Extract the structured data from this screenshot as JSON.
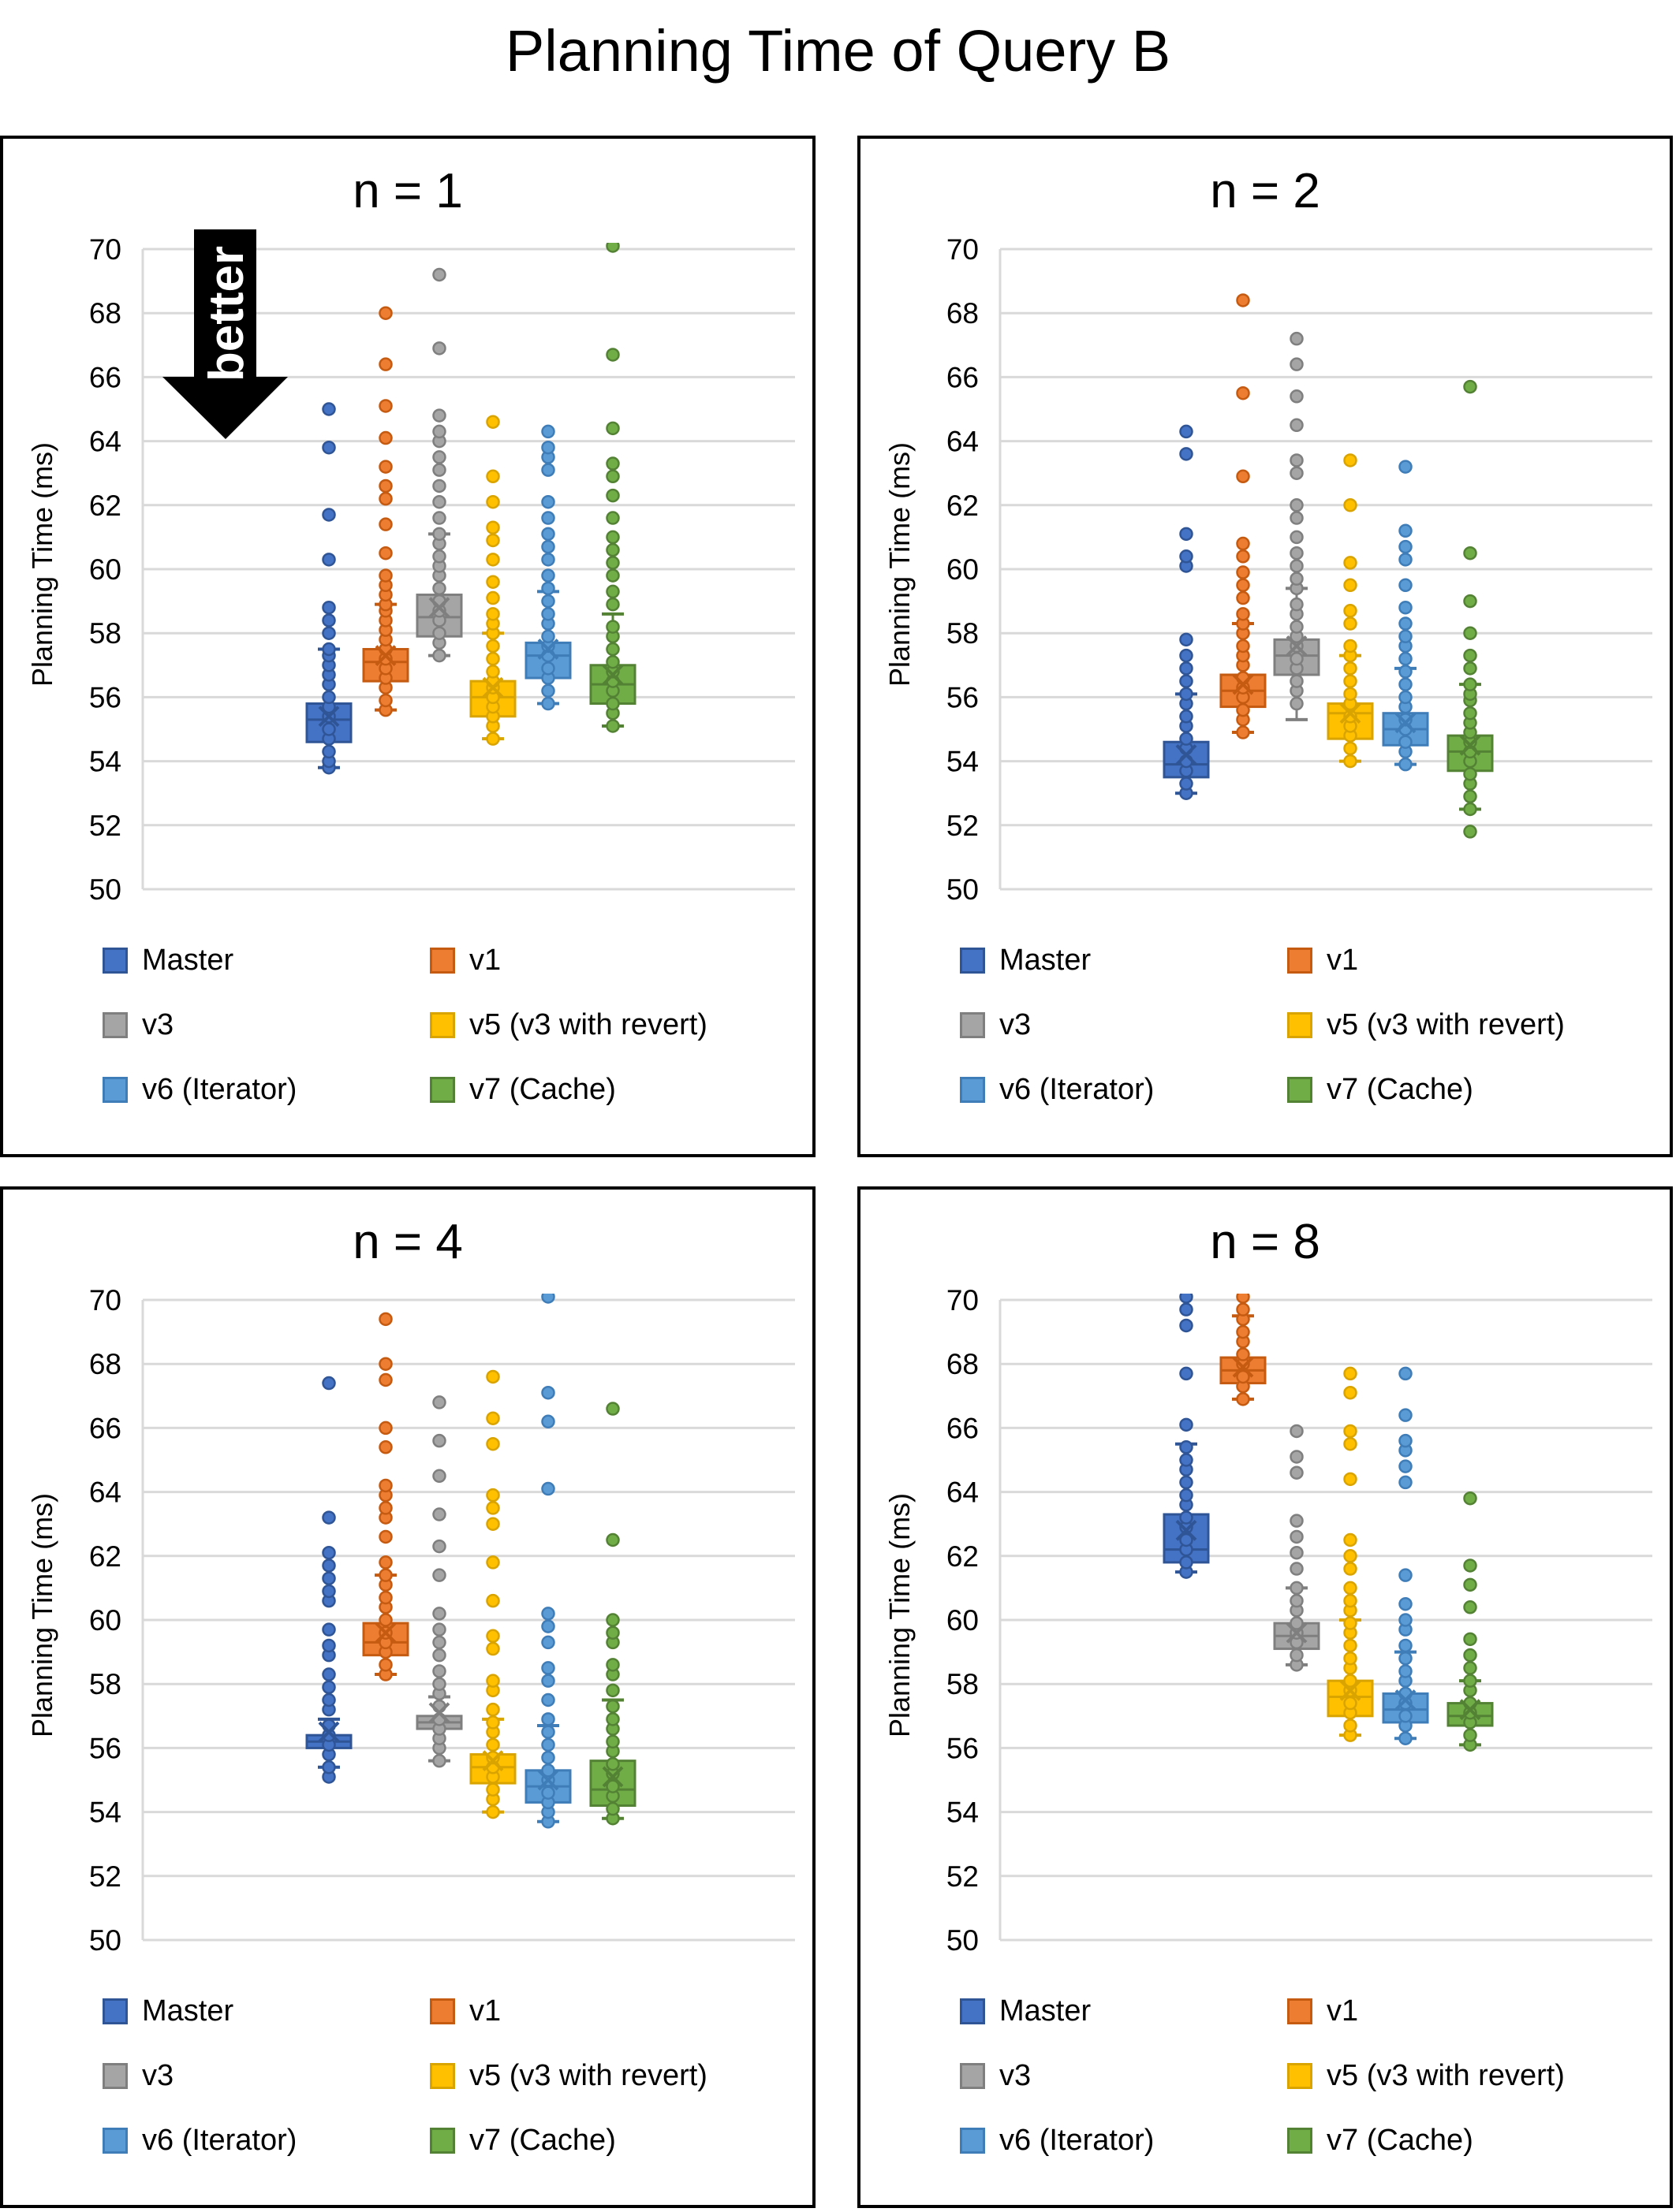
{
  "title": "Planning Time of Query B",
  "legend": [
    {
      "label": "Master",
      "color": "#4472C4",
      "border": "#2F5597"
    },
    {
      "label": "v1",
      "color": "#ED7D31",
      "border": "#C55A11"
    },
    {
      "label": "v3",
      "color": "#A5A5A5",
      "border": "#7F7F7F"
    },
    {
      "label": "v5 (v3 with revert)",
      "color": "#FFC000",
      "border": "#D9A300"
    },
    {
      "label": "v6 (Iterator)",
      "color": "#5B9BD5",
      "border": "#3F7DB8"
    },
    {
      "label": "v7 (Cache)",
      "color": "#70AD47",
      "border": "#548235"
    }
  ],
  "annotation": {
    "text": "better",
    "meaning": "lower is better"
  },
  "chart_data": [
    {
      "type": "box",
      "title": "n = 1",
      "xlabel": "",
      "ylabel": "Planning Time (ms)",
      "ylim": [
        50,
        70
      ],
      "yticks": [
        50,
        52,
        54,
        56,
        58,
        60,
        62,
        64,
        66,
        68,
        70
      ],
      "grid": true,
      "legend_position": "bottom",
      "series": [
        {
          "name": "Master",
          "q1": 54.6,
          "median": 55.3,
          "q3": 55.8,
          "mean": 55.4,
          "whisker_low": 53.8,
          "whisker_high": 57.5,
          "points": [
            53.8,
            54.0,
            54.3,
            54.7,
            55.0,
            55.4,
            55.7,
            56.0,
            56.4,
            56.7,
            57.0,
            57.3,
            57.5,
            58.0,
            58.4,
            58.8,
            60.3,
            61.7,
            63.8,
            65.0
          ]
        },
        {
          "name": "v1",
          "q1": 56.5,
          "median": 57.1,
          "q3": 57.5,
          "mean": 57.3,
          "whisker_low": 55.6,
          "whisker_high": 58.9,
          "points": [
            55.6,
            55.9,
            56.3,
            56.6,
            56.9,
            57.2,
            57.5,
            57.8,
            58.1,
            58.4,
            58.7,
            58.9,
            59.2,
            59.5,
            59.8,
            60.5,
            61.4,
            62.2,
            62.6,
            63.2,
            64.1,
            65.1,
            66.4,
            68.0
          ]
        },
        {
          "name": "v3",
          "q1": 57.9,
          "median": 58.5,
          "q3": 59.2,
          "mean": 58.8,
          "whisker_low": 57.3,
          "whisker_high": 61.1,
          "points": [
            57.3,
            57.7,
            58.0,
            58.4,
            58.7,
            59.0,
            59.4,
            59.8,
            60.1,
            60.4,
            60.8,
            61.1,
            61.6,
            62.1,
            62.6,
            63.1,
            63.5,
            64.0,
            64.3,
            64.8,
            66.9,
            69.2
          ]
        },
        {
          "name": "v5 (v3 with revert)",
          "q1": 55.4,
          "median": 56.0,
          "q3": 56.5,
          "mean": 56.3,
          "whisker_low": 54.7,
          "whisker_high": 58.0,
          "points": [
            54.7,
            55.1,
            55.4,
            55.7,
            56.0,
            56.3,
            56.5,
            56.8,
            57.2,
            57.6,
            58.0,
            58.3,
            58.6,
            59.1,
            59.6,
            60.3,
            60.9,
            61.3,
            62.1,
            62.9,
            64.6
          ]
        },
        {
          "name": "v6 (Iterator)",
          "q1": 56.6,
          "median": 57.3,
          "q3": 57.7,
          "mean": 57.5,
          "whisker_low": 55.8,
          "whisker_high": 59.3,
          "points": [
            55.8,
            56.2,
            56.6,
            56.9,
            57.3,
            57.6,
            57.9,
            58.3,
            58.6,
            59.0,
            59.4,
            59.8,
            60.3,
            60.7,
            61.1,
            61.6,
            62.1,
            63.1,
            63.5,
            63.8,
            64.3
          ]
        },
        {
          "name": "v7 (Cache)",
          "q1": 55.8,
          "median": 56.4,
          "q3": 57.0,
          "mean": 56.7,
          "whisker_low": 55.1,
          "whisker_high": 58.6,
          "points": [
            55.1,
            55.5,
            55.8,
            56.2,
            56.5,
            56.8,
            57.1,
            57.5,
            57.9,
            58.2,
            58.9,
            59.3,
            59.8,
            60.2,
            60.6,
            61.0,
            61.6,
            62.3,
            62.9,
            63.3,
            64.4,
            66.7,
            70.1
          ]
        }
      ]
    },
    {
      "type": "box",
      "title": "n = 2",
      "xlabel": "",
      "ylabel": "Planning Time (ms)",
      "ylim": [
        50,
        70
      ],
      "yticks": [
        50,
        52,
        54,
        56,
        58,
        60,
        62,
        64,
        66,
        68,
        70
      ],
      "grid": true,
      "legend_position": "bottom",
      "series": [
        {
          "name": "Master",
          "q1": 53.5,
          "median": 53.9,
          "q3": 54.6,
          "mean": 54.2,
          "whisker_low": 53.0,
          "whisker_high": 56.1,
          "points": [
            53.0,
            53.3,
            53.7,
            54.0,
            54.4,
            54.7,
            55.1,
            55.4,
            55.8,
            56.1,
            56.5,
            56.9,
            57.3,
            57.8,
            60.1,
            60.4,
            61.1,
            63.6,
            64.3
          ]
        },
        {
          "name": "v1",
          "q1": 55.7,
          "median": 56.2,
          "q3": 56.7,
          "mean": 56.4,
          "whisker_low": 54.9,
          "whisker_high": 58.3,
          "points": [
            54.9,
            55.3,
            55.6,
            56.0,
            56.3,
            56.6,
            57.0,
            57.3,
            57.6,
            58.0,
            58.3,
            58.6,
            59.1,
            59.5,
            59.9,
            60.4,
            60.8,
            62.9,
            65.5,
            68.4
          ]
        },
        {
          "name": "v3",
          "q1": 56.7,
          "median": 57.3,
          "q3": 57.8,
          "mean": 57.6,
          "whisker_low": 55.3,
          "whisker_high": 59.4,
          "points": [
            55.8,
            56.2,
            56.5,
            56.9,
            57.2,
            57.6,
            57.9,
            58.2,
            58.6,
            58.9,
            59.4,
            59.7,
            60.1,
            60.5,
            61.0,
            61.6,
            62.0,
            63.0,
            63.4,
            64.5,
            65.4,
            66.4,
            67.2
          ]
        },
        {
          "name": "v5 (v3 with revert)",
          "q1": 54.7,
          "median": 55.5,
          "q3": 55.8,
          "mean": 55.5,
          "whisker_low": 54.0,
          "whisker_high": 57.3,
          "points": [
            54.0,
            54.4,
            54.8,
            55.1,
            55.4,
            55.8,
            56.1,
            56.5,
            56.9,
            57.3,
            57.6,
            58.3,
            58.7,
            59.5,
            60.2,
            62.0,
            63.4
          ]
        },
        {
          "name": "v6 (Iterator)",
          "q1": 54.5,
          "median": 55.0,
          "q3": 55.5,
          "mean": 55.2,
          "whisker_low": 53.9,
          "whisker_high": 56.9,
          "points": [
            53.9,
            54.3,
            54.6,
            55.0,
            55.3,
            55.7,
            56.0,
            56.4,
            56.8,
            57.2,
            57.6,
            57.9,
            58.3,
            58.8,
            59.5,
            60.3,
            60.7,
            61.2,
            63.2
          ]
        },
        {
          "name": "v7 (Cache)",
          "q1": 53.7,
          "median": 54.3,
          "q3": 54.8,
          "mean": 54.5,
          "whisker_low": 52.5,
          "whisker_high": 56.4,
          "points": [
            51.8,
            52.5,
            52.9,
            53.3,
            53.6,
            54.0,
            54.3,
            54.6,
            54.9,
            55.2,
            55.5,
            55.9,
            56.1,
            56.4,
            56.9,
            57.3,
            58.0,
            59.0,
            60.5,
            65.7
          ]
        }
      ]
    },
    {
      "type": "box",
      "title": "n = 4",
      "xlabel": "",
      "ylabel": "Planning Time (ms)",
      "ylim": [
        50,
        70
      ],
      "yticks": [
        50,
        52,
        54,
        56,
        58,
        60,
        62,
        64,
        66,
        68,
        70
      ],
      "grid": true,
      "legend_position": "bottom",
      "series": [
        {
          "name": "Master",
          "q1": 56.0,
          "median": 56.2,
          "q3": 56.4,
          "mean": 56.5,
          "whisker_low": 55.4,
          "whisker_high": 56.9,
          "points": [
            55.1,
            55.4,
            55.8,
            56.1,
            56.4,
            56.7,
            57.2,
            57.5,
            57.9,
            58.3,
            58.9,
            59.2,
            59.7,
            60.6,
            60.9,
            61.3,
            61.7,
            62.1,
            63.2,
            67.4
          ]
        },
        {
          "name": "v1",
          "q1": 58.9,
          "median": 59.3,
          "q3": 59.9,
          "mean": 59.6,
          "whisker_low": 58.3,
          "whisker_high": 61.4,
          "points": [
            58.3,
            58.6,
            59.0,
            59.3,
            59.6,
            60.0,
            60.4,
            60.7,
            61.1,
            61.4,
            61.8,
            62.6,
            63.2,
            63.5,
            63.9,
            64.2,
            65.4,
            66.0,
            67.5,
            68.0,
            69.4
          ]
        },
        {
          "name": "v3",
          "q1": 56.6,
          "median": 56.8,
          "q3": 57.0,
          "mean": 57.1,
          "whisker_low": 55.6,
          "whisker_high": 57.6,
          "points": [
            55.6,
            56.0,
            56.3,
            56.6,
            56.9,
            57.3,
            57.7,
            58.0,
            58.4,
            58.9,
            59.3,
            59.7,
            60.2,
            61.4,
            62.3,
            63.3,
            64.5,
            65.6,
            66.8
          ]
        },
        {
          "name": "v5 (v3 with revert)",
          "q1": 54.9,
          "median": 55.4,
          "q3": 55.8,
          "mean": 55.6,
          "whisker_low": 54.0,
          "whisker_high": 56.9,
          "points": [
            54.0,
            54.4,
            54.7,
            55.1,
            55.4,
            55.7,
            56.1,
            56.5,
            56.8,
            57.2,
            57.8,
            58.1,
            59.1,
            59.5,
            60.6,
            61.8,
            63.0,
            63.5,
            63.9,
            65.5,
            66.3,
            67.6
          ]
        },
        {
          "name": "v6 (Iterator)",
          "q1": 54.3,
          "median": 54.8,
          "q3": 55.3,
          "mean": 55.0,
          "whisker_low": 53.7,
          "whisker_high": 56.7,
          "points": [
            53.7,
            54.0,
            54.3,
            54.6,
            55.0,
            55.3,
            55.7,
            56.1,
            56.5,
            56.9,
            57.5,
            58.1,
            58.5,
            59.3,
            59.8,
            60.2,
            64.1,
            66.2,
            67.1,
            70.1
          ]
        },
        {
          "name": "v7 (Cache)",
          "q1": 54.2,
          "median": 54.7,
          "q3": 55.6,
          "mean": 55.1,
          "whisker_low": 53.8,
          "whisker_high": 57.5,
          "points": [
            53.8,
            54.1,
            54.5,
            54.8,
            55.2,
            55.5,
            55.9,
            56.2,
            56.6,
            56.9,
            57.3,
            57.8,
            58.3,
            58.6,
            59.3,
            59.6,
            60.0,
            62.5,
            66.6
          ]
        }
      ]
    },
    {
      "type": "box",
      "title": "n = 8",
      "xlabel": "",
      "ylabel": "Planning Time (ms)",
      "ylim": [
        50,
        70
      ],
      "yticks": [
        50,
        52,
        54,
        56,
        58,
        60,
        62,
        64,
        66,
        68,
        70
      ],
      "grid": true,
      "legend_position": "bottom",
      "series": [
        {
          "name": "Master",
          "q1": 61.8,
          "median": 62.2,
          "q3": 63.3,
          "mean": 62.8,
          "whisker_low": 61.5,
          "whisker_high": 65.5,
          "points": [
            61.5,
            61.8,
            62.2,
            62.5,
            62.9,
            63.2,
            63.6,
            63.9,
            64.3,
            64.7,
            65.0,
            65.4,
            66.1,
            67.7,
            69.2,
            69.7,
            70.1
          ]
        },
        {
          "name": "v1",
          "q1": 67.4,
          "median": 67.8,
          "q3": 68.2,
          "mean": 67.9,
          "whisker_low": 66.9,
          "whisker_high": 69.5,
          "points": [
            66.9,
            67.3,
            67.6,
            68.0,
            68.3,
            68.7,
            69.0,
            69.4,
            69.7,
            70.1
          ]
        },
        {
          "name": "v3",
          "q1": 59.1,
          "median": 59.5,
          "q3": 59.9,
          "mean": 59.6,
          "whisker_low": 58.6,
          "whisker_high": 61.0,
          "points": [
            58.6,
            58.9,
            59.3,
            59.6,
            59.9,
            60.3,
            60.6,
            61.0,
            61.6,
            62.1,
            62.6,
            63.1,
            64.6,
            65.1,
            65.9
          ]
        },
        {
          "name": "v5 (v3 with revert)",
          "q1": 57.0,
          "median": 57.6,
          "q3": 58.1,
          "mean": 57.8,
          "whisker_low": 56.4,
          "whisker_high": 60.0,
          "points": [
            56.4,
            56.7,
            57.1,
            57.4,
            57.8,
            58.1,
            58.5,
            58.8,
            59.2,
            59.6,
            59.9,
            60.3,
            60.6,
            61.0,
            61.6,
            62.0,
            62.5,
            64.4,
            65.5,
            65.9,
            67.1,
            67.7
          ]
        },
        {
          "name": "v6 (Iterator)",
          "q1": 56.8,
          "median": 57.2,
          "q3": 57.7,
          "mean": 57.5,
          "whisker_low": 56.3,
          "whisker_high": 59.0,
          "points": [
            56.3,
            56.7,
            57.0,
            57.4,
            57.7,
            58.1,
            58.4,
            58.8,
            59.2,
            59.7,
            60.0,
            60.5,
            61.4,
            64.3,
            64.8,
            65.3,
            65.6,
            66.4,
            67.7
          ]
        },
        {
          "name": "v7 (Cache)",
          "q1": 56.7,
          "median": 57.0,
          "q3": 57.4,
          "mean": 57.2,
          "whisker_low": 56.1,
          "whisker_high": 58.1,
          "points": [
            56.1,
            56.4,
            56.8,
            57.1,
            57.4,
            57.8,
            58.1,
            58.5,
            58.9,
            59.4,
            60.4,
            61.1,
            61.7,
            63.8
          ]
        }
      ]
    }
  ]
}
